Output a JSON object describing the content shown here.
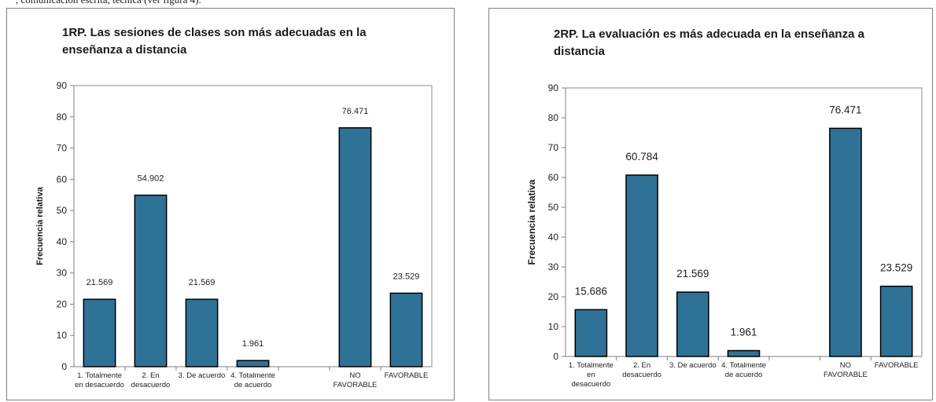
{
  "page": {
    "top_text": ", comunicación escrita, técnica (ver figura 4)."
  },
  "chart_data": [
    {
      "type": "bar",
      "title_lines": [
        "1RP. Las sesiones de clases son más adecuadas en la",
        "enseñanza a distancia"
      ],
      "ylabel": "Frecuencia relativa",
      "xlabel": "",
      "ylim": [
        0,
        90
      ],
      "yticks": [
        0,
        10,
        20,
        30,
        40,
        50,
        60,
        70,
        80,
        90
      ],
      "categories": [
        [
          "1. Totalmente",
          "en desacuerdo"
        ],
        [
          "2. En",
          "desacuerdo"
        ],
        [
          "3. De acuerdo"
        ],
        [
          "4. Totalmente",
          "de acuerdo"
        ],
        [
          ""
        ],
        [
          "NO",
          "FAVORABLE"
        ],
        [
          "FAVORABLE"
        ]
      ],
      "values": [
        21.569,
        54.902,
        21.569,
        1.961,
        null,
        76.471,
        23.529
      ],
      "data_labels": [
        "21.569",
        "54.902",
        "21.569",
        "1.961",
        "",
        "76.471",
        "23.529"
      ],
      "bar_color": "#2e7397",
      "grid": false,
      "legend": "none"
    },
    {
      "type": "bar",
      "title_lines": [
        "2RP. La evaluación es más adecuada en la enseñanza a",
        "distancia"
      ],
      "ylabel": "Frecuencia relativa",
      "xlabel": "",
      "ylim": [
        0,
        90
      ],
      "yticks": [
        0,
        10,
        20,
        30,
        40,
        50,
        60,
        70,
        80,
        90
      ],
      "categories": [
        [
          "1. Totalmente",
          "en",
          "desacuerdo"
        ],
        [
          "2. En",
          "desacuerdo"
        ],
        [
          "3. De acuerdo"
        ],
        [
          "4. Totalmente",
          "de acuerdo"
        ],
        [
          ""
        ],
        [
          "NO",
          "FAVORABLE"
        ],
        [
          "FAVORABLE"
        ]
      ],
      "values": [
        15.686,
        60.784,
        21.569,
        1.961,
        null,
        76.471,
        23.529
      ],
      "data_labels": [
        "15.686",
        "60.784",
        "21.569",
        "1.961",
        "",
        "76.471",
        "23.529"
      ],
      "bar_color": "#2e7397",
      "grid": false,
      "legend": "none"
    }
  ]
}
